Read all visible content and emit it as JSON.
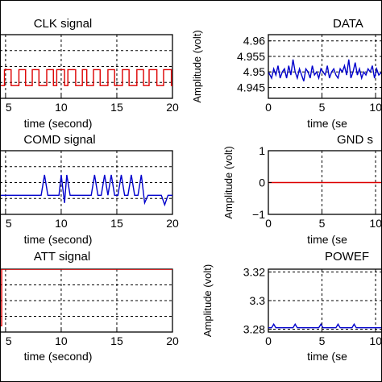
{
  "chart_data": [
    {
      "id": "clk",
      "type": "line",
      "title": "CLK signal",
      "xlabel": "time (second)",
      "ylabel": "",
      "xlim": [
        4.5,
        20
      ],
      "x_ticks": [
        5,
        10,
        15,
        20
      ],
      "y_ticks": [],
      "ylim": [
        0,
        1
      ],
      "grid": true,
      "color": "#dd0000",
      "series": [
        {
          "x": [
            4.5,
            4.9,
            4.9,
            5.5,
            5.5,
            6.2,
            6.2,
            6.8,
            6.8,
            7.4,
            7.4,
            8.0,
            8.0,
            8.7,
            8.7,
            9.3,
            9.3,
            9.6,
            9.6,
            10.3,
            10.3,
            10.6,
            10.6,
            11.3,
            11.3,
            11.9,
            11.9,
            12.3,
            12.3,
            12.9,
            12.9,
            13.5,
            13.5,
            14.2,
            14.2,
            14.8,
            14.8,
            15.5,
            15.5,
            16.1,
            16.1,
            16.8,
            16.8,
            17.4,
            17.4,
            17.9,
            17.9,
            18.6,
            18.6,
            19.2,
            19.2,
            19.9,
            19.9,
            20
          ],
          "y": [
            0.2,
            0.2,
            0.45,
            0.45,
            0.2,
            0.2,
            0.45,
            0.45,
            0.2,
            0.2,
            0.45,
            0.45,
            0.2,
            0.2,
            0.45,
            0.45,
            0.2,
            0.2,
            0.45,
            0.45,
            0.2,
            0.2,
            0.45,
            0.45,
            0.2,
            0.2,
            0.45,
            0.45,
            0.2,
            0.2,
            0.45,
            0.45,
            0.2,
            0.2,
            0.45,
            0.45,
            0.2,
            0.2,
            0.45,
            0.45,
            0.2,
            0.2,
            0.45,
            0.45,
            0.2,
            0.2,
            0.45,
            0.45,
            0.2,
            0.2,
            0.45,
            0.45,
            0.2,
            0.2
          ]
        }
      ]
    },
    {
      "id": "data",
      "type": "line",
      "title": "DATA",
      "xlabel": "time (se",
      "ylabel": "Amplitude (volt)",
      "xlim": [
        0,
        10.6
      ],
      "ylim": [
        4.9415,
        4.962
      ],
      "x_ticks": [
        0,
        5,
        10
      ],
      "x_tick_labels": [
        "0",
        "5",
        "10"
      ],
      "y_ticks": [
        4.945,
        4.95,
        4.955,
        4.96
      ],
      "y_tick_labels": [
        "4.945",
        "4.95",
        "4.955",
        "4.96"
      ],
      "grid": true,
      "color": "#0000cc",
      "series": [
        {
          "x": [
            0,
            0.3,
            0.5,
            0.7,
            0.9,
            1.1,
            1.3,
            1.5,
            1.7,
            1.9,
            2.1,
            2.3,
            2.5,
            2.7,
            2.9,
            3.1,
            3.3,
            3.5,
            3.7,
            3.9,
            4.1,
            4.3,
            4.5,
            4.7,
            4.9,
            5.1,
            5.3,
            5.5,
            5.7,
            5.9,
            6.1,
            6.3,
            6.5,
            6.7,
            6.9,
            7.1,
            7.3,
            7.5,
            7.7,
            7.9,
            8.1,
            8.3,
            8.5,
            8.7,
            8.9,
            9.1,
            9.3,
            9.5,
            9.7,
            9.9,
            10.1,
            10.3,
            10.6
          ],
          "y": [
            4.95,
            4.948,
            4.951,
            4.949,
            4.952,
            4.948,
            4.95,
            4.951,
            4.948,
            4.952,
            4.949,
            4.954,
            4.95,
            4.948,
            4.951,
            4.949,
            4.947,
            4.951,
            4.95,
            4.948,
            4.952,
            4.949,
            4.95,
            4.948,
            4.951,
            4.95,
            4.949,
            4.952,
            4.948,
            4.95,
            4.951,
            4.949,
            4.948,
            4.951,
            4.95,
            4.952,
            4.949,
            4.954,
            4.948,
            4.95,
            4.953,
            4.949,
            4.951,
            4.948,
            4.95,
            4.949,
            4.951,
            4.95,
            4.952,
            4.948,
            4.951,
            4.949,
            4.95
          ]
        }
      ]
    },
    {
      "id": "comd",
      "type": "line",
      "title": "COMD signal",
      "xlabel": "time (second)",
      "ylabel": "",
      "xlim": [
        4.5,
        20
      ],
      "x_ticks": [
        5,
        10,
        15,
        20
      ],
      "y_ticks": [],
      "ylim": [
        0,
        1
      ],
      "grid": true,
      "color": "#0000cc",
      "series": [
        {
          "x": [
            4.5,
            8.2,
            8.5,
            8.8,
            9.2,
            9.5,
            9.8,
            10.0,
            10.3,
            10.5,
            10.8,
            11.3,
            12.7,
            13.0,
            13.3,
            13.6,
            13.9,
            14.2,
            14.5,
            14.8,
            15.1,
            15.4,
            15.7,
            16.0,
            16.3,
            16.6,
            16.9,
            17.2,
            17.5,
            17.8,
            18.1,
            18.4,
            18.7,
            19.0,
            19.3,
            19.6,
            20
          ],
          "y": [
            0.3,
            0.3,
            0.62,
            0.3,
            0.3,
            0.3,
            0.3,
            0.62,
            0.18,
            0.62,
            0.3,
            0.3,
            0.3,
            0.62,
            0.3,
            0.3,
            0.62,
            0.3,
            0.62,
            0.3,
            0.3,
            0.62,
            0.3,
            0.3,
            0.62,
            0.3,
            0.3,
            0.62,
            0.18,
            0.3,
            0.3,
            0.3,
            0.3,
            0.3,
            0.15,
            0.3,
            0.3
          ]
        }
      ]
    },
    {
      "id": "gnd",
      "type": "line",
      "title": "GND s",
      "xlabel": "time (se",
      "ylabel": "Amplitude (volt)",
      "xlim": [
        0,
        10.6
      ],
      "ylim": [
        -1,
        1
      ],
      "x_ticks": [
        0,
        5,
        10
      ],
      "x_tick_labels": [
        "0",
        "5",
        "10"
      ],
      "y_ticks": [
        -1,
        0,
        1
      ],
      "y_tick_labels": [
        "−1",
        "0",
        "1"
      ],
      "grid": true,
      "color": "#dd0000",
      "series": [
        {
          "x": [
            0,
            10.6
          ],
          "y": [
            0,
            0
          ]
        }
      ]
    },
    {
      "id": "att",
      "type": "line",
      "title": "ATT signal",
      "xlabel": "time (second)",
      "ylabel": "",
      "xlim": [
        4.5,
        20
      ],
      "x_ticks": [
        5,
        10,
        15,
        20
      ],
      "y_ticks": [],
      "ylim": [
        0,
        1
      ],
      "grid": true,
      "color": "#dd0000",
      "series": [
        {
          "x": [
            4.5,
            4.65,
            4.65,
            20
          ],
          "y": [
            0.1,
            0.1,
            1.0,
            1.0
          ]
        }
      ]
    },
    {
      "id": "power",
      "type": "line",
      "title": "POWEF",
      "xlabel": "time (se",
      "ylabel": "Amplitude (volt)",
      "xlim": [
        0,
        10.6
      ],
      "ylim": [
        3.278,
        3.322
      ],
      "x_ticks": [
        0,
        5,
        10
      ],
      "x_tick_labels": [
        "0",
        "5",
        "10"
      ],
      "y_ticks": [
        3.28,
        3.3,
        3.32
      ],
      "y_tick_labels": [
        "3.28",
        "3.3",
        "3.32"
      ],
      "grid": true,
      "color": "#0000cc",
      "series": [
        {
          "x": [
            0,
            0.3,
            0.5,
            0.7,
            2.3,
            2.5,
            2.7,
            4.7,
            4.9,
            5.1,
            6.3,
            6.5,
            6.7,
            7.8,
            8.0,
            8.2,
            10.6
          ],
          "y": [
            3.281,
            3.281,
            3.2835,
            3.281,
            3.281,
            3.2835,
            3.281,
            3.281,
            3.2835,
            3.281,
            3.281,
            3.2835,
            3.281,
            3.281,
            3.2835,
            3.281,
            3.281
          ]
        }
      ]
    }
  ]
}
